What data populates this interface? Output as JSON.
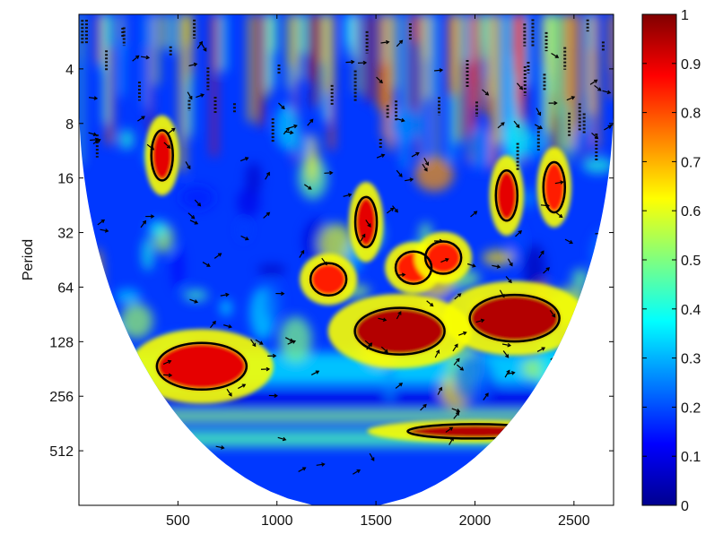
{
  "chart_data": {
    "type": "heatmap",
    "title": "",
    "xlabel": "",
    "ylabel": "Period",
    "xlim": [
      0,
      2700
    ],
    "ylim_period": [
      2,
      1024
    ],
    "y_scale": "log2-reversed",
    "x_ticks": [
      500,
      1000,
      1500,
      2000,
      2500
    ],
    "x_tick_labels": [
      "500",
      "1000",
      "1500",
      "2000",
      "2500"
    ],
    "y_ticks": [
      4,
      8,
      16,
      32,
      64,
      128,
      256,
      512
    ],
    "y_tick_labels": [
      "4",
      "8",
      "16",
      "32",
      "64",
      "128",
      "256",
      "512"
    ],
    "colorbar": {
      "range": [
        0,
        1
      ],
      "ticks": [
        0,
        0.1,
        0.2,
        0.3,
        0.4,
        0.5,
        0.6,
        0.7,
        0.8,
        0.9,
        1
      ],
      "tick_labels": [
        "0",
        "0.1",
        "0.2",
        "0.3",
        "0.4",
        "0.5",
        "0.6",
        "0.7",
        "0.8",
        "0.9",
        "1"
      ],
      "colormap": "jet"
    },
    "cone_of_influence": true,
    "significance_contours": true,
    "phase_arrows": true,
    "grid": false,
    "hotspots": [
      {
        "x": 620,
        "period": 175,
        "value": 0.9
      },
      {
        "x": 1260,
        "period": 58,
        "value": 0.85
      },
      {
        "x": 1620,
        "period": 112,
        "value": 0.95
      },
      {
        "x": 1450,
        "period": 28,
        "value": 0.9
      },
      {
        "x": 1690,
        "period": 50,
        "value": 0.85
      },
      {
        "x": 1840,
        "period": 44,
        "value": 0.85
      },
      {
        "x": 2200,
        "period": 95,
        "value": 0.95
      },
      {
        "x": 2160,
        "period": 20,
        "value": 0.9
      },
      {
        "x": 2000,
        "period": 400,
        "value": 0.95
      },
      {
        "x": 420,
        "period": 12,
        "value": 0.9
      },
      {
        "x": 2400,
        "period": 18,
        "value": 0.85
      }
    ]
  }
}
